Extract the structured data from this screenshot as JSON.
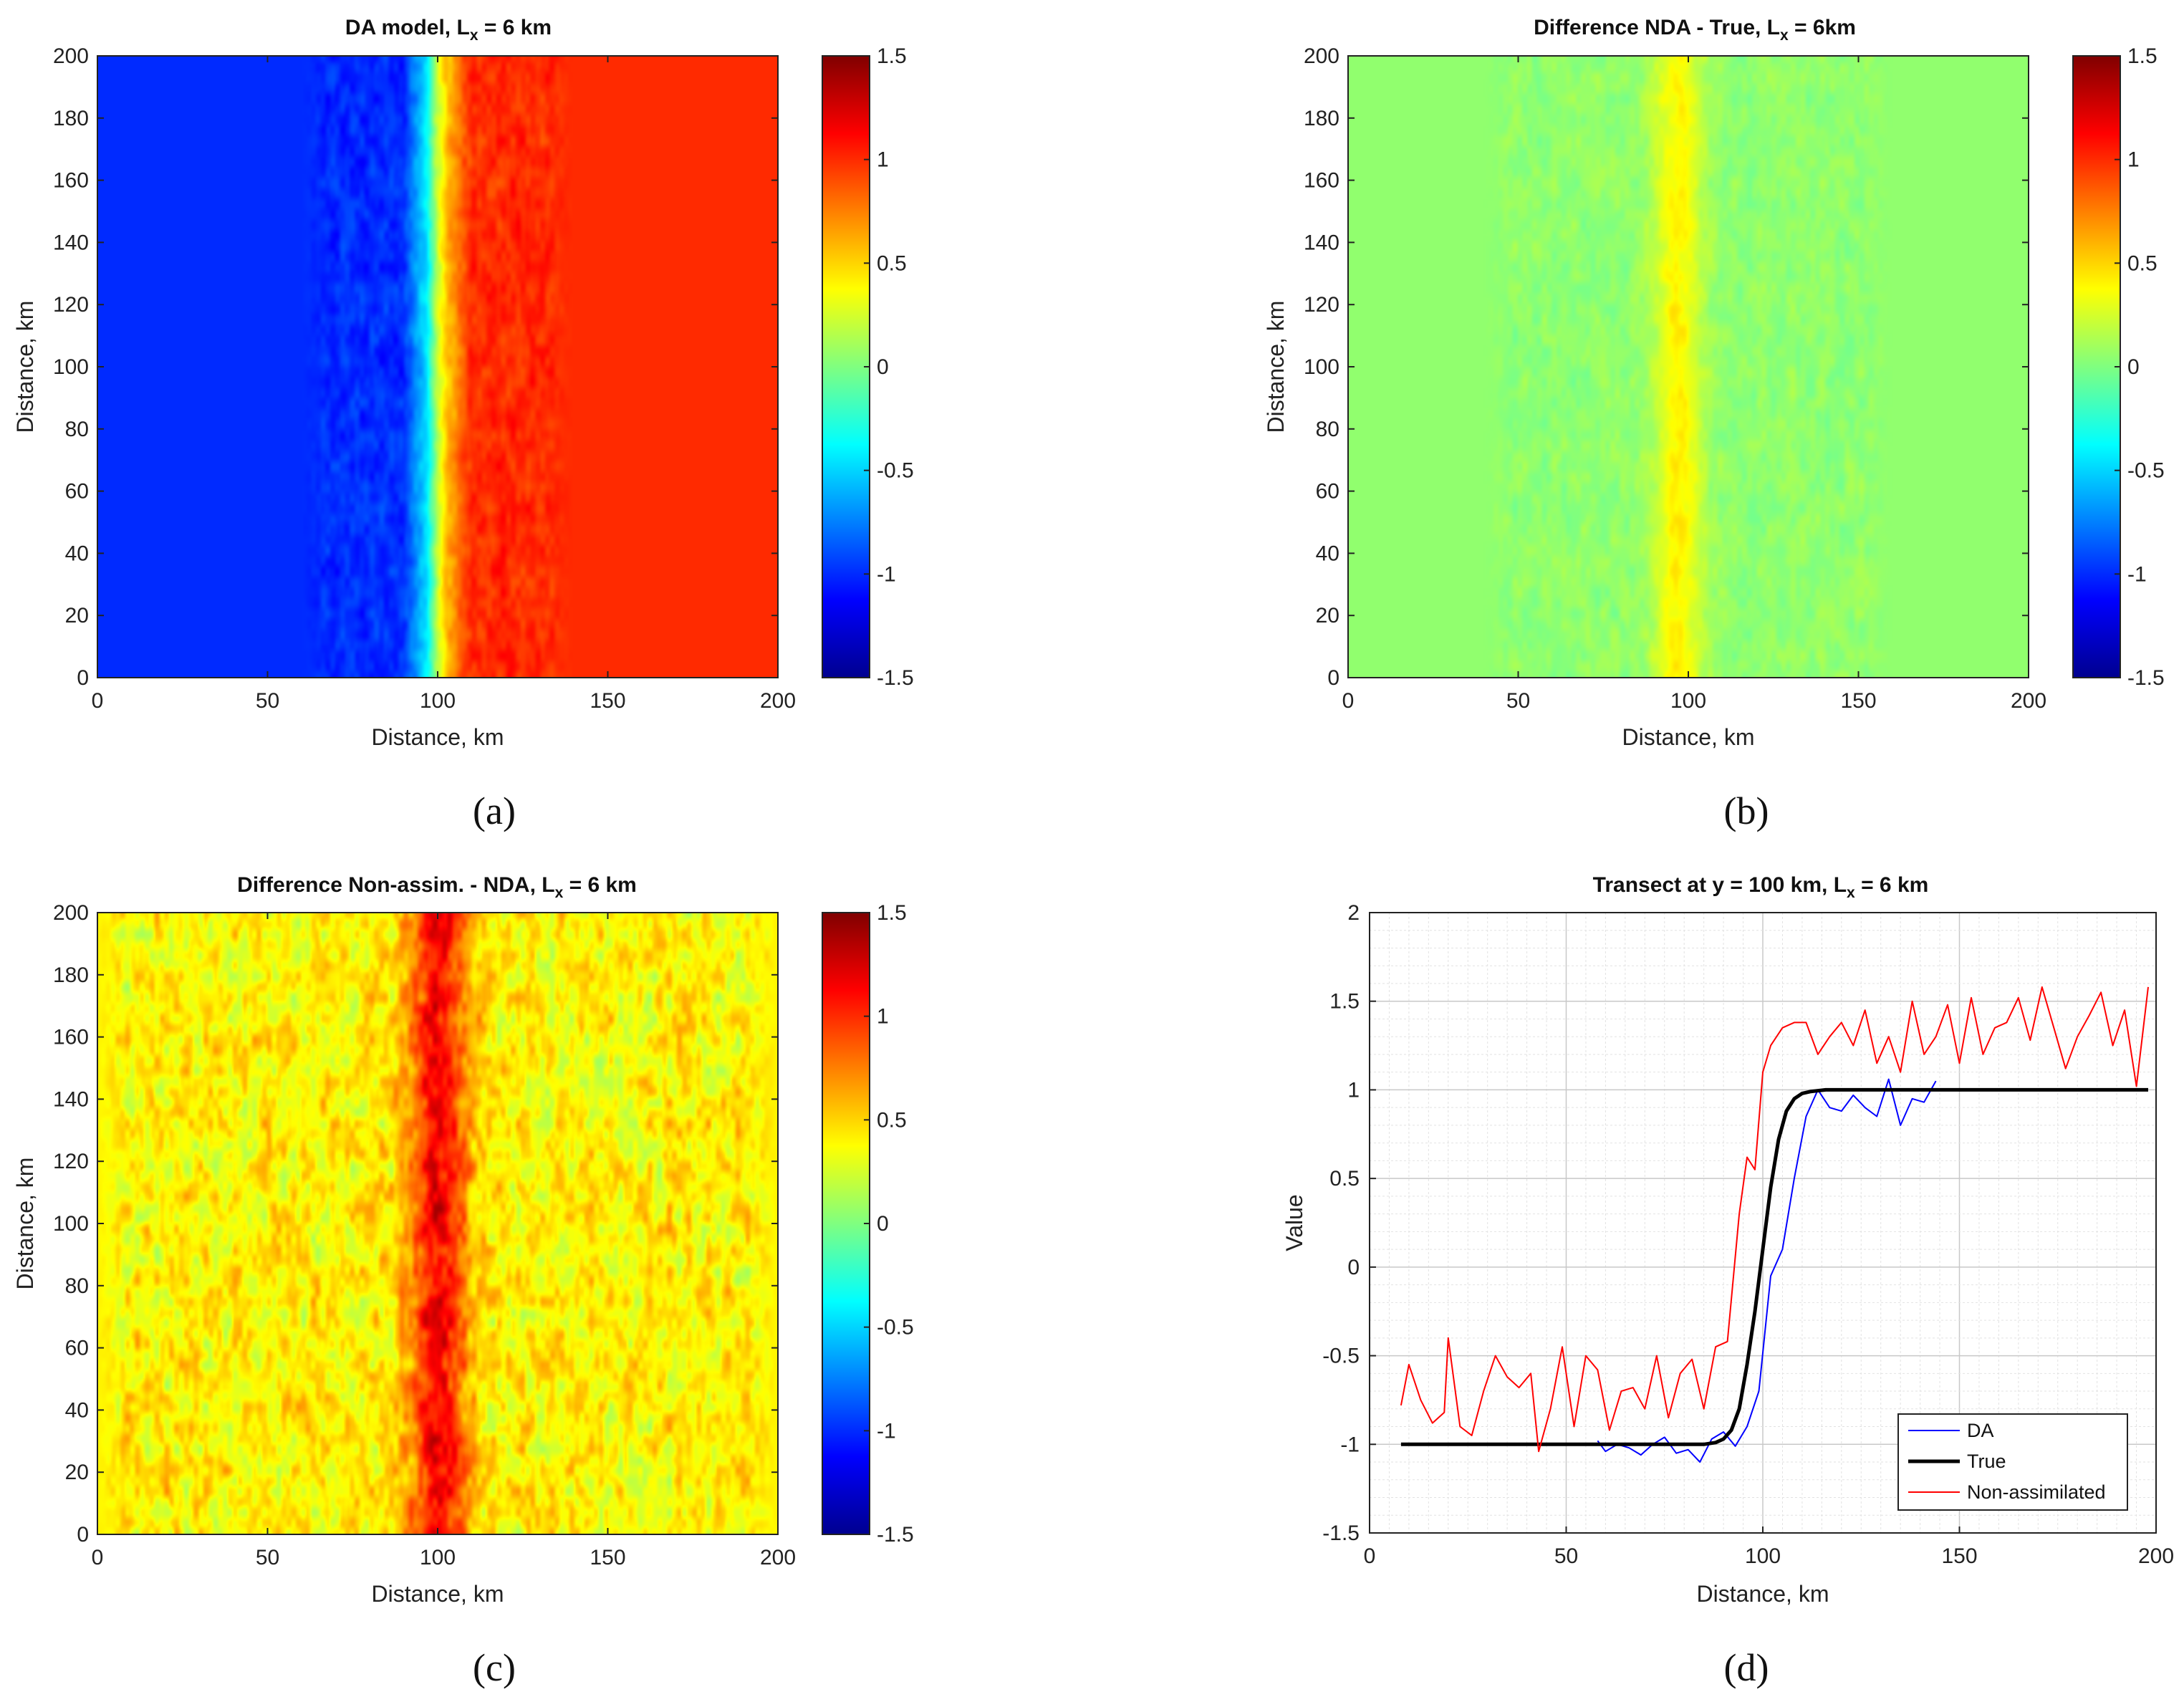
{
  "colorbar": {
    "min": -1.5,
    "max": 1.5,
    "ticks": [
      "1.5",
      "1",
      "0.5",
      "0",
      "-0.5",
      "-1",
      "-1.5"
    ]
  },
  "chart_data": [
    {
      "panel": "a",
      "type": "heatmap",
      "title": "DA model, L",
      "title_sub": "x",
      "title_tail": " = 6 km",
      "xlabel": "Distance, km",
      "ylabel": "Distance, km",
      "xlim": [
        0,
        200
      ],
      "ylim": [
        0,
        200
      ],
      "xticks": [
        "0",
        "50",
        "100",
        "150",
        "200"
      ],
      "yticks": [
        "0",
        "20",
        "40",
        "60",
        "80",
        "100",
        "120",
        "140",
        "160",
        "180",
        "200"
      ],
      "clim": [
        -1.5,
        1.5
      ],
      "colorbar_ticks": [
        "1.5",
        "1",
        "0.5",
        "0",
        "-0.5",
        "-1",
        "-1.5"
      ],
      "field": {
        "profile_x": [
          0,
          60,
          90,
          97,
          100,
          103,
          110,
          140,
          200
        ],
        "profile_v": [
          -1.0,
          -1.0,
          -1.0,
          -0.4,
          0.2,
          0.6,
          1.0,
          1.0,
          1.0
        ],
        "noisy_range_x": [
          60,
          140
        ],
        "noise_amplitude": 0.12
      },
      "caption": "(a)"
    },
    {
      "panel": "b",
      "type": "heatmap",
      "title": "Difference NDA - True, L",
      "title_sub": "x",
      "title_tail": " = 6km",
      "xlabel": "Distance, km",
      "ylabel": "Distance, km",
      "xlim": [
        0,
        200
      ],
      "ylim": [
        0,
        200
      ],
      "xticks": [
        "0",
        "50",
        "100",
        "150",
        "200"
      ],
      "yticks": [
        "0",
        "20",
        "40",
        "60",
        "80",
        "100",
        "120",
        "140",
        "160",
        "180",
        "200"
      ],
      "clim": [
        -1.5,
        1.5
      ],
      "colorbar_ticks": [
        "1.5",
        "1",
        "0.5",
        "0",
        "-0.5",
        "-1",
        "-1.5"
      ],
      "field": {
        "background": 0.05,
        "ridge_center_x": 97,
        "ridge_width": 5,
        "ridge_peak": 0.35,
        "noisy_range_x": [
          40,
          160
        ],
        "noise_amplitude": 0.08
      },
      "caption": "(b)"
    },
    {
      "panel": "c",
      "type": "heatmap",
      "title": "Difference Non-assim. - NDA, L",
      "title_sub": "x",
      "title_tail": " = 6 km",
      "xlabel": "Distance, km",
      "ylabel": "Distance, km",
      "xlim": [
        0,
        200
      ],
      "ylim": [
        0,
        200
      ],
      "xticks": [
        "0",
        "50",
        "100",
        "150",
        "200"
      ],
      "yticks": [
        "0",
        "20",
        "40",
        "60",
        "80",
        "100",
        "120",
        "140",
        "160",
        "180",
        "200"
      ],
      "clim": [
        -1.5,
        1.5
      ],
      "colorbar_ticks": [
        "1.5",
        "1",
        "0.5",
        "0",
        "-0.5",
        "-1",
        "-1.5"
      ],
      "field": {
        "background": 0.4,
        "ridge_center_x": 100,
        "ridge_width": 6,
        "ridge_peak": 0.75,
        "noisy_range_x": [
          0,
          200
        ],
        "noise_amplitude": 0.25
      },
      "caption": "(c)"
    },
    {
      "panel": "d",
      "type": "line",
      "title": "Transect at y = 100 km, L",
      "title_sub": "x",
      "title_tail": " = 6 km",
      "xlabel": "Distance, km",
      "ylabel": "Value",
      "xlim": [
        0,
        200
      ],
      "ylim": [
        -1.5,
        2
      ],
      "xticks": [
        "0",
        "50",
        "100",
        "150",
        "200"
      ],
      "yticks": [
        "-1.5",
        "-1",
        "-0.5",
        "0",
        "0.5",
        "1",
        "1.5",
        "2"
      ],
      "legend_position": "bottom-right",
      "series": [
        {
          "name": "DA",
          "color": "#0000ff",
          "width": 2,
          "x": [
            58,
            60,
            63,
            66,
            69,
            72,
            75,
            78,
            81,
            84,
            87,
            90,
            93,
            96,
            99,
            102,
            105,
            108,
            111,
            114,
            117,
            120,
            123,
            126,
            129,
            132,
            135,
            138,
            141,
            144
          ],
          "y": [
            -0.98,
            -1.04,
            -1.0,
            -1.02,
            -1.06,
            -1.0,
            -0.96,
            -1.05,
            -1.03,
            -1.1,
            -0.97,
            -0.93,
            -1.01,
            -0.9,
            -0.7,
            -0.05,
            0.1,
            0.5,
            0.85,
            1.0,
            0.9,
            0.88,
            0.97,
            0.9,
            0.85,
            1.06,
            0.8,
            0.95,
            0.93,
            1.05
          ]
        },
        {
          "name": "True",
          "color": "#000000",
          "width": 5,
          "x": [
            8,
            85,
            88,
            90,
            92,
            94,
            96,
            98,
            100,
            102,
            104,
            106,
            108,
            110,
            112,
            116,
            120,
            198
          ],
          "y": [
            -1.0,
            -1.0,
            -0.99,
            -0.97,
            -0.92,
            -0.8,
            -0.55,
            -0.25,
            0.1,
            0.45,
            0.72,
            0.88,
            0.95,
            0.98,
            0.99,
            1.0,
            1.0,
            1.0
          ]
        },
        {
          "name": "Non-assimilated",
          "color": "#ff0000",
          "width": 2,
          "x": [
            8,
            10,
            13,
            16,
            19,
            20,
            23,
            26,
            29,
            32,
            35,
            38,
            41,
            43,
            46,
            49,
            52,
            55,
            58,
            61,
            64,
            67,
            70,
            73,
            76,
            79,
            82,
            85,
            88,
            91,
            94,
            96,
            98,
            100,
            102,
            105,
            108,
            111,
            114,
            117,
            120,
            123,
            126,
            129,
            132,
            135,
            138,
            141,
            144,
            147,
            150,
            153,
            156,
            159,
            162,
            165,
            168,
            171,
            174,
            177,
            180,
            183,
            186,
            189,
            192,
            195,
            198
          ],
          "y": [
            -0.78,
            -0.55,
            -0.75,
            -0.88,
            -0.82,
            -0.4,
            -0.9,
            -0.95,
            -0.7,
            -0.5,
            -0.62,
            -0.68,
            -0.6,
            -1.04,
            -0.8,
            -0.45,
            -0.9,
            -0.5,
            -0.58,
            -0.92,
            -0.7,
            -0.68,
            -0.8,
            -0.5,
            -0.85,
            -0.6,
            -0.52,
            -0.8,
            -0.45,
            -0.42,
            0.3,
            0.62,
            0.55,
            1.1,
            1.25,
            1.35,
            1.38,
            1.38,
            1.2,
            1.3,
            1.38,
            1.25,
            1.45,
            1.15,
            1.3,
            1.1,
            1.5,
            1.2,
            1.3,
            1.48,
            1.15,
            1.52,
            1.2,
            1.35,
            1.38,
            1.52,
            1.28,
            1.58,
            1.35,
            1.12,
            1.3,
            1.42,
            1.55,
            1.25,
            1.45,
            1.02,
            1.58
          ]
        }
      ],
      "caption": "(d)"
    }
  ]
}
